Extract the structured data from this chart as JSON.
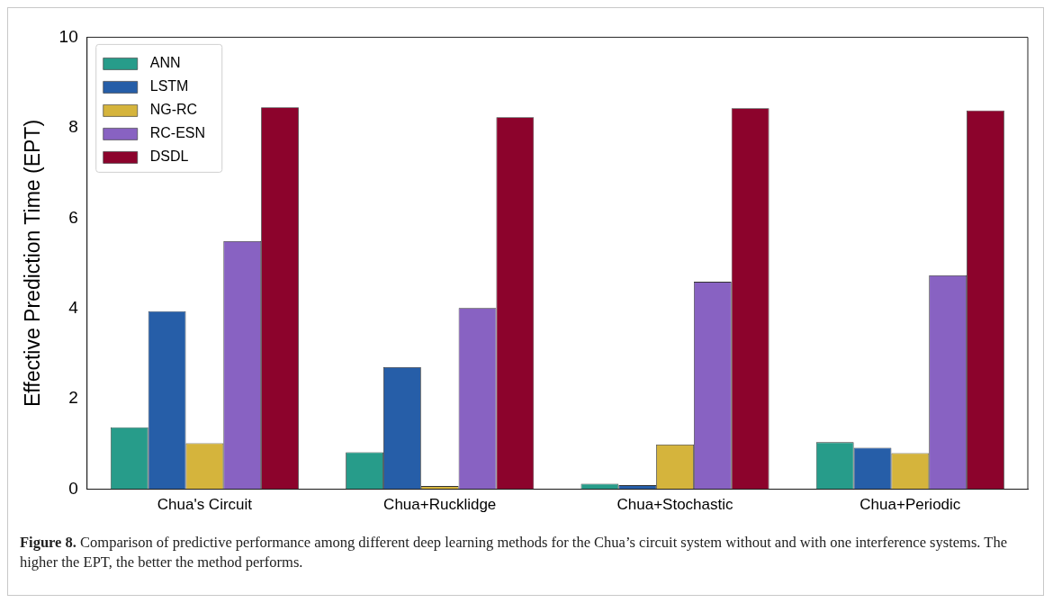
{
  "chart_data": {
    "type": "bar",
    "categories": [
      "Chua's Circuit",
      "Chua+Rucklidge",
      "Chua+Stochastic",
      "Chua+Periodic"
    ],
    "ylabel": "Effective Prediction Time (EPT)",
    "series": [
      {
        "name": "ANN",
        "color": "#279c8a",
        "values": [
          1.37,
          0.82,
          0.12,
          1.04
        ]
      },
      {
        "name": "LSTM",
        "color": "#265ea8",
        "values": [
          3.94,
          2.7,
          0.09,
          0.92
        ]
      },
      {
        "name": "NG-RC",
        "color": "#d5b43c",
        "values": [
          1.02,
          0.07,
          0.99,
          0.8
        ]
      },
      {
        "name": "RC-ESN",
        "color": "#8862c2",
        "values": [
          5.49,
          4.01,
          4.59,
          4.73
        ]
      },
      {
        "name": "DSDL",
        "color": "#8c032c",
        "values": [
          8.45,
          8.23,
          8.43,
          8.38
        ]
      }
    ],
    "ylim": [
      0,
      10
    ],
    "yticks": [
      0,
      2,
      4,
      6,
      8,
      10
    ],
    "grid": false,
    "legend": "top left",
    "annotations": [
      "Figure 8. Comparison of predictive performance among different deep learning methods for the Chua’s circuit system without and with one interference systems. The higher the EPT, the better the method performs."
    ]
  }
}
